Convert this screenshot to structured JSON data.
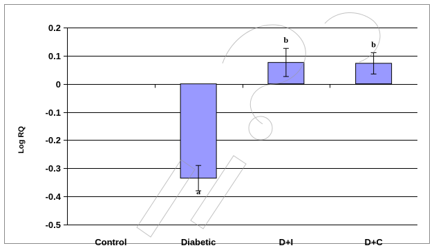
{
  "chart_data": {
    "type": "bar",
    "title": "",
    "xlabel": "",
    "ylabel": "Log RQ",
    "ylim": [
      -0.5,
      0.2
    ],
    "yticks": [
      0.2,
      0.1,
      0,
      -0.1,
      -0.2,
      -0.3,
      -0.4,
      -0.5
    ],
    "ytick_labels": [
      "0.2",
      "0.1",
      "0",
      "-0.1",
      "-0.2",
      "-0.3",
      "-0.4",
      "-0.5"
    ],
    "grid": true,
    "legend": "none",
    "bar_color": "#9999ff",
    "categories": [
      "Control",
      "Diabetic",
      "D+I",
      "D+C"
    ],
    "values": [
      0,
      -0.335,
      0.076,
      0.073
    ],
    "errors": [
      0,
      0.045,
      0.05,
      0.038
    ],
    "annotations": [
      "",
      "a",
      "b",
      "b"
    ]
  }
}
